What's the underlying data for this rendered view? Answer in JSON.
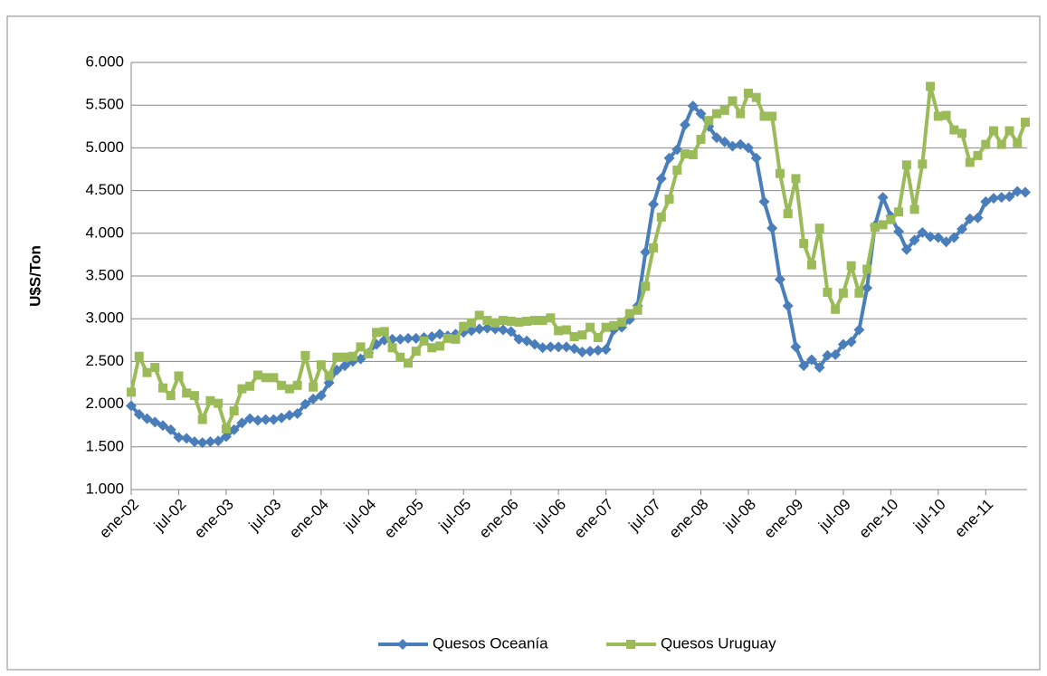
{
  "chart_data": {
    "type": "line",
    "y_label": "U$S/Ton",
    "categories": [
      "ene-02",
      null,
      null,
      null,
      null,
      null,
      "jul-02",
      null,
      null,
      null,
      null,
      null,
      "ene-03",
      null,
      null,
      null,
      null,
      null,
      "jul-03",
      null,
      null,
      null,
      null,
      null,
      "ene-04",
      null,
      null,
      null,
      null,
      null,
      "jul-04",
      null,
      null,
      null,
      null,
      null,
      "ene-05",
      null,
      null,
      null,
      null,
      null,
      "jul-05",
      null,
      null,
      null,
      null,
      null,
      "ene-06",
      null,
      null,
      null,
      null,
      null,
      "jul-06",
      null,
      null,
      null,
      null,
      null,
      "ene-07",
      null,
      null,
      null,
      null,
      null,
      "jul-07",
      null,
      null,
      null,
      null,
      null,
      "ene-08",
      null,
      null,
      null,
      null,
      null,
      "jul-08",
      null,
      null,
      null,
      null,
      null,
      "ene-09",
      null,
      null,
      null,
      null,
      null,
      "jul-09",
      null,
      null,
      null,
      null,
      null,
      "ene-10",
      null,
      null,
      null,
      null,
      null,
      "jul-10",
      null,
      null,
      null,
      null,
      null,
      "ene-11",
      null,
      null,
      null,
      null,
      null
    ],
    "series": [
      {
        "name": "Quesos Oceanía",
        "color": "#4a7ebb",
        "marker": "diamond",
        "values": [
          1980,
          1880,
          1830,
          1790,
          1750,
          1700,
          1610,
          1600,
          1560,
          1550,
          1560,
          1570,
          1620,
          1700,
          1780,
          1830,
          1810,
          1820,
          1820,
          1840,
          1870,
          1890,
          2000,
          2060,
          2100,
          2250,
          2400,
          2450,
          2500,
          2530,
          2600,
          2700,
          2750,
          2760,
          2760,
          2770,
          2770,
          2780,
          2790,
          2820,
          2800,
          2820,
          2840,
          2860,
          2880,
          2890,
          2880,
          2870,
          2850,
          2760,
          2740,
          2700,
          2660,
          2670,
          2670,
          2670,
          2650,
          2610,
          2620,
          2630,
          2640,
          2870,
          2900,
          2990,
          3150,
          3780,
          4340,
          4640,
          4880,
          4980,
          5270,
          5490,
          5400,
          5250,
          5120,
          5070,
          5020,
          5040,
          5000,
          4880,
          4370,
          4060,
          3460,
          3150,
          2670,
          2450,
          2520,
          2430,
          2570,
          2580,
          2700,
          2730,
          2870,
          3360,
          4090,
          4420,
          4200,
          4020,
          3810,
          3920,
          4010,
          3960,
          3950,
          3900,
          3950,
          4050,
          4170,
          4180,
          4370,
          4410,
          4420,
          4430,
          4490,
          4480
        ]
      },
      {
        "name": "Quesos Uruguay",
        "color": "#9bbb59",
        "marker": "square",
        "values": [
          2140,
          2560,
          2370,
          2430,
          2190,
          2100,
          2330,
          2130,
          2100,
          1820,
          2040,
          2010,
          1710,
          1920,
          2180,
          2210,
          2340,
          2310,
          2310,
          2220,
          2180,
          2220,
          2570,
          2200,
          2460,
          2330,
          2550,
          2550,
          2560,
          2670,
          2590,
          2840,
          2850,
          2660,
          2550,
          2480,
          2620,
          2740,
          2660,
          2680,
          2770,
          2760,
          2910,
          2950,
          3040,
          2980,
          2950,
          2980,
          2970,
          2960,
          2970,
          2980,
          2980,
          3010,
          2860,
          2870,
          2790,
          2810,
          2900,
          2780,
          2900,
          2920,
          2960,
          3060,
          3100,
          3380,
          3830,
          4190,
          4400,
          4740,
          4930,
          4920,
          5100,
          5320,
          5400,
          5440,
          5550,
          5400,
          5640,
          5590,
          5370,
          5370,
          4700,
          4230,
          4640,
          3880,
          3630,
          4060,
          3310,
          3110,
          3300,
          3620,
          3300,
          3580,
          4070,
          4100,
          4160,
          4250,
          4800,
          4280,
          4810,
          5720,
          5370,
          5380,
          5210,
          5170,
          4830,
          4910,
          5040,
          5200,
          5040,
          5200,
          5060,
          5300
        ]
      }
    ],
    "ylim": [
      1000,
      6000
    ],
    "yticks": [
      {
        "value": 1000,
        "label": "1.000"
      },
      {
        "value": 1500,
        "label": "1.500"
      },
      {
        "value": 2000,
        "label": "2.000"
      },
      {
        "value": 2500,
        "label": "2.500"
      },
      {
        "value": 3000,
        "label": "3.000"
      },
      {
        "value": 3500,
        "label": "3.500"
      },
      {
        "value": 4000,
        "label": "4.000"
      },
      {
        "value": 4500,
        "label": "4.500"
      },
      {
        "value": 5000,
        "label": "5.000"
      },
      {
        "value": 5500,
        "label": "5.500"
      },
      {
        "value": 6000,
        "label": "6.000"
      }
    ],
    "grid": true,
    "legend": "bottom"
  }
}
